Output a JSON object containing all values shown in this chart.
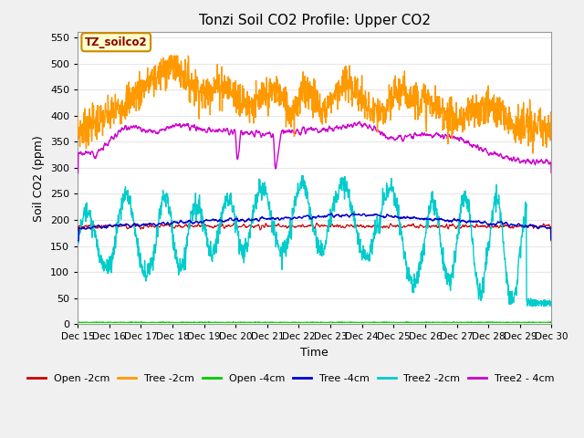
{
  "title": "Tonzi Soil CO2 Profile: Upper CO2",
  "ylabel": "Soil CO2 (ppm)",
  "xlabel": "Time",
  "annotation": "TZ_soilco2",
  "ylim": [
    0,
    560
  ],
  "yticks": [
    0,
    50,
    100,
    150,
    200,
    250,
    300,
    350,
    400,
    450,
    500,
    550
  ],
  "colors": {
    "Open -2cm": "#cc0000",
    "Tree -2cm": "#ff9900",
    "Open -4cm": "#00cc00",
    "Tree -4cm": "#0000cc",
    "Tree2 -2cm": "#00cccc",
    "Tree2 -4cm": "#cc00cc"
  },
  "grid_color": "#e8e8e8",
  "background_color": "#f0f0f0",
  "plot_bg": "#ffffff",
  "n_points": 1500,
  "start_day": 15,
  "end_day": 30
}
